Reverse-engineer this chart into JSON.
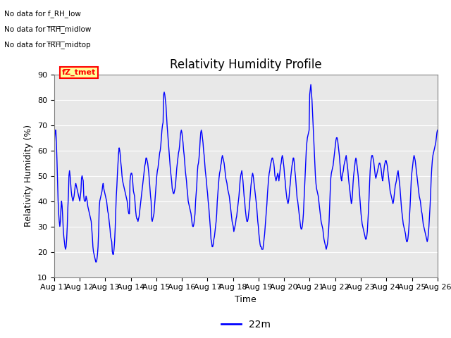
{
  "title": "Relativity Humidity Profile",
  "ylabel": "Relativity Humidity (%)",
  "xlabel": "Time",
  "ylim": [
    10,
    90
  ],
  "yticks": [
    10,
    20,
    30,
    40,
    50,
    60,
    70,
    80,
    90
  ],
  "line_color": "blue",
  "line_width": 1.0,
  "legend_label": "22m",
  "no_data_texts": [
    "No data for f_RH_low",
    "No data for f_RH_midlow",
    "No data for f_RH_midtop"
  ],
  "tz_tmet_label": "fZ_tmet",
  "bg_color": "#e8e8e8",
  "x_start_day": 11,
  "x_end_day": 26,
  "xtick_days": [
    11,
    12,
    13,
    14,
    15,
    16,
    17,
    18,
    19,
    20,
    21,
    22,
    23,
    24,
    25,
    26
  ],
  "y_values": [
    61,
    65,
    68,
    68,
    63,
    56,
    48,
    40,
    35,
    32,
    30,
    32,
    37,
    40,
    38,
    34,
    29,
    26,
    24,
    22,
    21,
    22,
    25,
    30,
    37,
    42,
    50,
    52,
    50,
    47,
    44,
    42,
    41,
    40,
    41,
    42,
    44,
    46,
    47,
    46,
    45,
    44,
    43,
    42,
    41,
    40,
    42,
    44,
    49,
    50,
    49,
    48,
    42,
    40,
    40,
    40,
    42,
    41,
    40,
    38,
    37,
    36,
    35,
    34,
    33,
    32,
    29,
    26,
    22,
    20,
    19,
    18,
    17,
    16,
    16,
    17,
    19,
    22,
    28,
    37,
    40,
    41,
    42,
    43,
    44,
    46,
    47,
    45,
    44,
    43,
    42,
    41,
    40,
    38,
    36,
    35,
    33,
    31,
    29,
    26,
    25,
    24,
    20,
    19,
    19,
    21,
    24,
    29,
    36,
    42,
    46,
    51,
    55,
    59,
    61,
    60,
    58,
    55,
    53,
    50,
    48,
    47,
    46,
    45,
    44,
    43,
    42,
    41,
    40,
    38,
    36,
    35,
    35,
    48,
    50,
    51,
    51,
    50,
    47,
    44,
    43,
    42,
    39,
    36,
    34,
    33,
    33,
    32,
    33,
    34,
    36,
    38,
    40,
    42,
    44,
    46,
    48,
    50,
    52,
    54,
    55,
    57,
    57,
    56,
    55,
    53,
    51,
    48,
    45,
    42,
    40,
    33,
    32,
    33,
    34,
    35,
    38,
    41,
    44,
    47,
    50,
    52,
    53,
    55,
    57,
    59,
    60,
    62,
    65,
    68,
    70,
    71,
    82,
    83,
    82,
    80,
    78,
    74,
    70,
    67,
    64,
    61,
    58,
    55,
    52,
    50,
    48,
    45,
    44,
    43,
    43,
    44,
    45,
    47,
    50,
    53,
    55,
    57,
    59,
    60,
    62,
    65,
    67,
    68,
    67,
    65,
    63,
    60,
    58,
    55,
    52,
    50,
    48,
    45,
    43,
    40,
    39,
    38,
    37,
    36,
    35,
    33,
    31,
    30,
    30,
    31,
    33,
    35,
    40,
    43,
    46,
    51,
    54,
    55,
    57,
    60,
    64,
    67,
    68,
    67,
    65,
    63,
    60,
    58,
    55,
    52,
    50,
    48,
    45,
    43,
    40,
    38,
    35,
    32,
    29,
    25,
    24,
    22,
    22,
    23,
    25,
    26,
    28,
    30,
    32,
    35,
    40,
    43,
    46,
    49,
    51,
    52,
    54,
    55,
    57,
    58,
    57,
    56,
    55,
    53,
    51,
    49,
    48,
    47,
    45,
    44,
    43,
    42,
    40,
    38,
    36,
    34,
    32,
    31,
    30,
    28,
    29,
    30,
    31,
    33,
    34,
    36,
    38,
    40,
    42,
    45,
    48,
    50,
    51,
    52,
    50,
    48,
    45,
    42,
    40,
    37,
    35,
    33,
    32,
    32,
    33,
    35,
    37,
    40,
    43,
    46,
    48,
    50,
    51,
    50,
    48,
    46,
    44,
    42,
    40,
    38,
    35,
    32,
    30,
    27,
    25,
    23,
    22,
    22,
    21,
    21,
    21,
    23,
    25,
    27,
    30,
    33,
    36,
    39,
    43,
    46,
    49,
    51,
    52,
    54,
    55,
    56,
    57,
    57,
    56,
    55,
    53,
    50,
    49,
    48,
    49,
    50,
    51,
    50,
    48,
    50,
    52,
    54,
    55,
    57,
    58,
    57,
    55,
    53,
    50,
    48,
    45,
    43,
    41,
    40,
    39,
    40,
    42,
    45,
    47,
    50,
    52,
    54,
    55,
    57,
    57,
    55,
    52,
    50,
    47,
    44,
    41,
    40,
    38,
    36,
    34,
    32,
    30,
    29,
    29,
    30,
    32,
    35,
    40,
    45,
    50,
    55,
    60,
    63,
    65,
    66,
    67,
    68,
    82,
    84,
    86,
    83,
    80,
    75,
    70,
    65,
    60,
    55,
    50,
    47,
    45,
    44,
    43,
    42,
    40,
    38,
    36,
    34,
    32,
    31,
    30,
    29,
    27,
    25,
    24,
    23,
    22,
    21,
    22,
    23,
    25,
    28,
    32,
    38,
    44,
    49,
    51,
    52,
    53,
    54,
    56,
    58,
    60,
    62,
    64,
    65,
    65,
    64,
    62,
    60,
    58,
    55,
    52,
    49,
    48,
    50,
    51,
    52,
    54,
    55,
    56,
    57,
    58,
    56,
    54,
    52,
    49,
    47,
    45,
    43,
    41,
    39,
    40,
    43,
    47,
    50,
    52,
    54,
    56,
    57,
    56,
    54,
    52,
    50,
    47,
    44,
    41,
    38,
    35,
    33,
    31,
    30,
    29,
    28,
    27,
    26,
    25,
    25,
    26,
    28,
    32,
    36,
    41,
    47,
    52,
    55,
    57,
    58,
    58,
    57,
    56,
    54,
    52,
    50,
    49,
    50,
    51,
    52,
    53,
    54,
    55,
    55,
    54,
    53,
    51,
    49,
    48,
    50,
    52,
    54,
    55,
    56,
    56,
    55,
    54,
    52,
    50,
    48,
    46,
    44,
    43,
    42,
    41,
    40,
    39,
    40,
    42,
    44,
    46,
    47,
    48,
    50,
    51,
    52,
    50,
    48,
    46,
    43,
    40,
    37,
    35,
    33,
    31,
    30,
    29,
    28,
    27,
    25,
    24,
    24,
    25,
    27,
    30,
    34,
    38,
    43,
    48,
    51,
    53,
    55,
    57,
    58,
    57,
    56,
    54,
    52,
    50,
    48,
    46,
    44,
    42,
    41,
    40,
    38,
    36,
    35,
    33,
    31,
    30,
    29,
    28,
    27,
    26,
    25,
    24,
    25,
    27,
    30,
    34,
    38,
    43,
    49,
    53,
    56,
    58,
    59,
    60,
    61,
    62,
    63,
    65,
    67,
    68
  ]
}
